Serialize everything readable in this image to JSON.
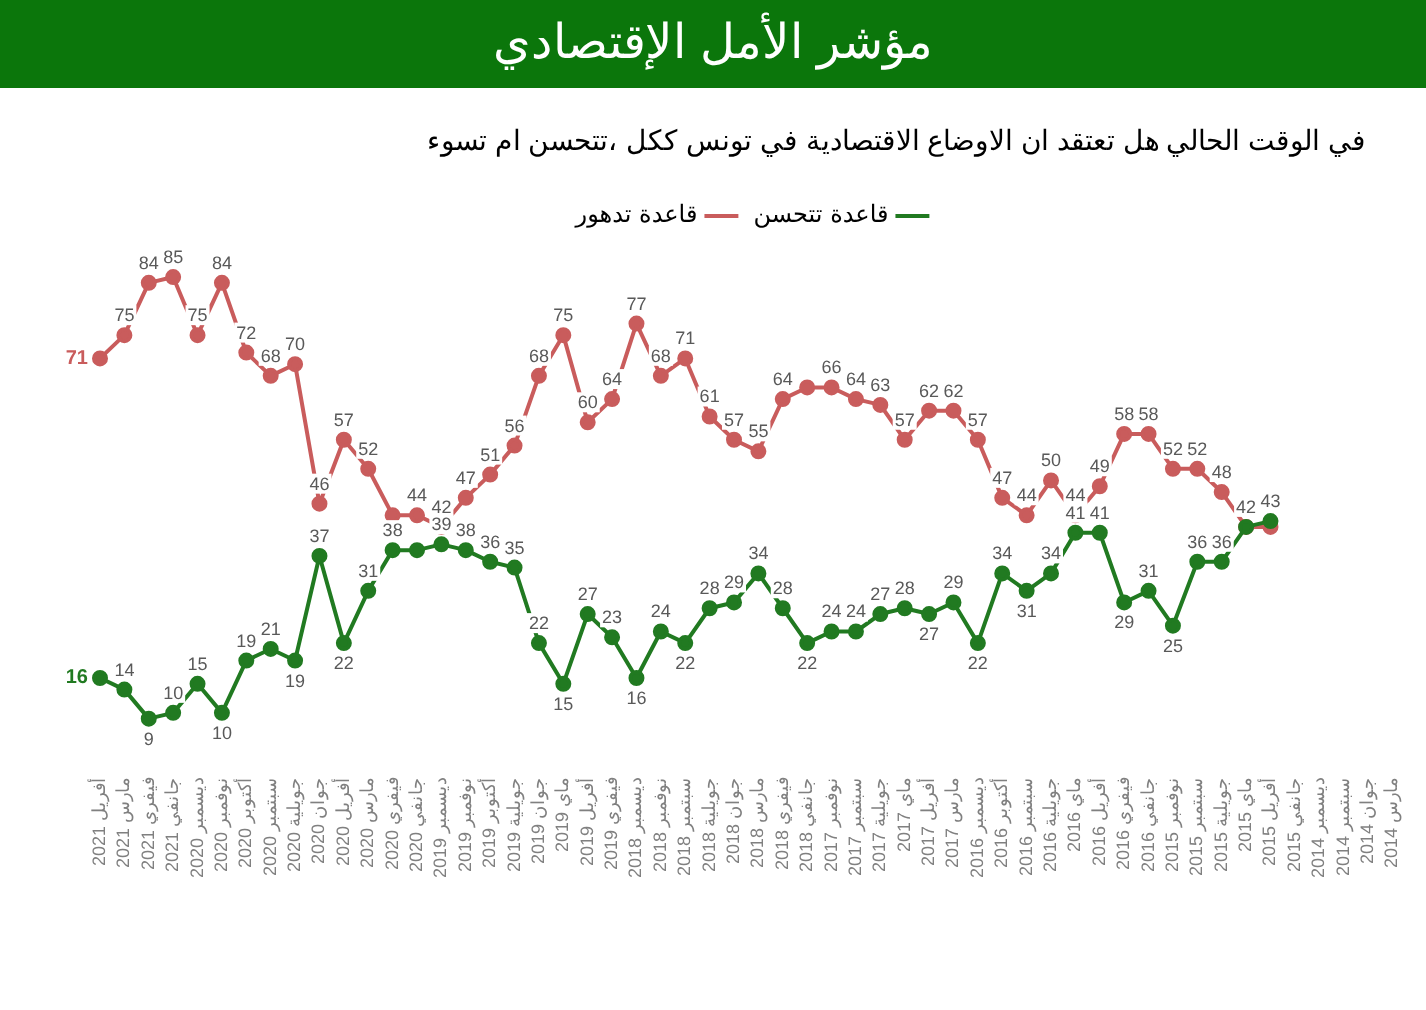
{
  "chart_data": {
    "type": "line",
    "title": "مؤشر الأمل الإقتصادي",
    "subtitle": "في الوقت الحالي هل تعتقد ان الاوضاع الاقتصادية في تونس ككل ،تتحسن ام تسوء",
    "categories": [
      "2021 أفريل",
      "2021 مارس",
      "2021 فيفري",
      "2021 جانفي",
      "2020 ديسمبر",
      "2020 نوفمبر",
      "2020 أكتوبر",
      "2020 سبتمبر",
      "2020 جويلية",
      "2020 جوان",
      "2020 أفريل",
      "2020 مارس",
      "2020 فيفري",
      "2020 جانفي",
      "2019 ديسمبر",
      "2019 نوفمبر",
      "2019 أكتوبر",
      "2019 جويلية",
      "2019 جوان",
      "2019 ماي",
      "2019 أفريل",
      "2019 فيفري",
      "2018 ديسمبر",
      "2018 نوفمبر",
      "2018 سبتمبر",
      "2018 جويلية",
      "2018 جوان",
      "2018 مارس",
      "2018 فيفري",
      "2018 جانفي",
      "2017 نوفمبر",
      "2017 سبتمبر",
      "2017 جويلية",
      "2017 ماي",
      "2017 أفريل",
      "2017 مارس",
      "2016 ديسمبر",
      "2016 أكتوبر",
      "2016 سبتمبر",
      "2016 جويلية",
      "2016 ماي",
      "2016 أفريل",
      "2016 فيفري",
      "2016 جانفي",
      "2015 نوفمبر",
      "2015 سبتمبر",
      "2015 جويلية",
      "2015 ماي",
      "2015 أفريل",
      "2015 جانفي",
      "2014 ديسمبر",
      "2014 سبتمبر",
      "2014 جوان",
      "2014 مارس"
    ],
    "series": [
      {
        "name": "قاعدة تتحسن",
        "color": "#217a21",
        "values": [
          16,
          14,
          9,
          10,
          15,
          10,
          19,
          21,
          19,
          37,
          22,
          31,
          38,
          38,
          39,
          38,
          36,
          35,
          22,
          15,
          27,
          23,
          16,
          24,
          22,
          28,
          29,
          34,
          28,
          22,
          24,
          24,
          27,
          28,
          27,
          29,
          22,
          34,
          31,
          34,
          41,
          41,
          29,
          31,
          25,
          36,
          36,
          42,
          43,
          null,
          null,
          null,
          null,
          null
        ],
        "value_labels": [
          "16",
          "14",
          "9",
          "10",
          "15",
          "10",
          "19",
          "21",
          "19",
          "37",
          "22",
          "31",
          "38",
          null,
          "39",
          "38",
          "36",
          "35",
          "22",
          "15",
          "27",
          "23",
          "16",
          "24",
          "22",
          "28",
          "29",
          "34",
          "28",
          "22",
          "24",
          "24",
          "27",
          "28",
          "27",
          "29",
          "22",
          "34",
          "31",
          "34",
          "41",
          "41",
          "29",
          "31",
          "25",
          "36",
          "36",
          "42",
          "43",
          null,
          null,
          null,
          null,
          null
        ]
      },
      {
        "name": "قاعدة تدهور",
        "color": "#c95c5c",
        "values": [
          71,
          75,
          84,
          85,
          75,
          84,
          72,
          68,
          70,
          46,
          57,
          52,
          44,
          44,
          42,
          47,
          51,
          56,
          68,
          75,
          60,
          64,
          77,
          68,
          71,
          61,
          57,
          55,
          64,
          66,
          66,
          64,
          63,
          57,
          62,
          62,
          57,
          47,
          44,
          50,
          44,
          49,
          58,
          58,
          52,
          52,
          48,
          42,
          42,
          null,
          null,
          null,
          null,
          null
        ],
        "value_labels": [
          "71",
          "75",
          "84",
          "85",
          "75",
          "84",
          "72",
          "68",
          "70",
          "46",
          "57",
          "52",
          null,
          "44",
          "42",
          "47",
          "51",
          "56",
          "68",
          "75",
          "60",
          "64",
          "77",
          "68",
          "71",
          "61",
          "57",
          "55",
          "64",
          null,
          "66",
          "64",
          "63",
          "57",
          "62",
          "62",
          "57",
          "47",
          "44",
          "50",
          "44",
          "49",
          "58",
          "58",
          "52",
          "52",
          "48",
          null,
          null,
          null,
          null,
          null,
          null,
          null
        ]
      }
    ],
    "legend": "top right",
    "marker": "circle",
    "line_style": "solid",
    "grid": false
  }
}
